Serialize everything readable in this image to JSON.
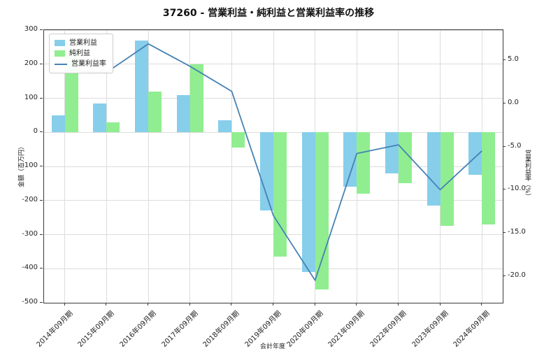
{
  "title": "37260 - 営業利益・純利益と営業利益率の推移",
  "chart_data": {
    "type": "bar",
    "subtype": "grouped-bars-with-line",
    "categories": [
      "2014年09月期",
      "2015年09月期",
      "2016年09月期",
      "2017年09月期",
      "2018年09月期",
      "2019年09月期",
      "2020年09月期",
      "2021年09月期",
      "2022年09月期",
      "2023年09月期",
      "2024年09月期"
    ],
    "series": [
      {
        "name": "営業利益",
        "type": "bar",
        "axis": "left",
        "color": "#87CEEB",
        "values": [
          50,
          85,
          270,
          110,
          35,
          -230,
          -410,
          -160,
          -120,
          -215,
          -125
        ]
      },
      {
        "name": "純利益",
        "type": "bar",
        "axis": "left",
        "color": "#90EE90",
        "values": [
          240,
          30,
          120,
          200,
          -45,
          -365,
          -460,
          -180,
          -150,
          -275,
          -270
        ]
      },
      {
        "name": "営業利益率",
        "type": "line",
        "axis": "right",
        "color": "#4682B4",
        "values": [
          3.8,
          3.6,
          6.9,
          4.3,
          1.4,
          -13.0,
          -20.5,
          -5.8,
          -4.8,
          -10.0,
          -5.5
        ]
      }
    ],
    "xlabel": "会計年度",
    "ylabel_left": "金額（百万円）",
    "ylabel_right": "営業利益率（%）",
    "ylim_left": [
      -500,
      300
    ],
    "yticks_left": [
      300,
      200,
      100,
      0,
      -100,
      -200,
      -300,
      -400,
      -500
    ],
    "ylim_right": [
      -23.1,
      8.5
    ],
    "yticks_right": [
      5.0,
      0.0,
      -5.0,
      -10.0,
      -15.0,
      -20.0
    ],
    "grid": true,
    "legend_position": "upper-left"
  }
}
